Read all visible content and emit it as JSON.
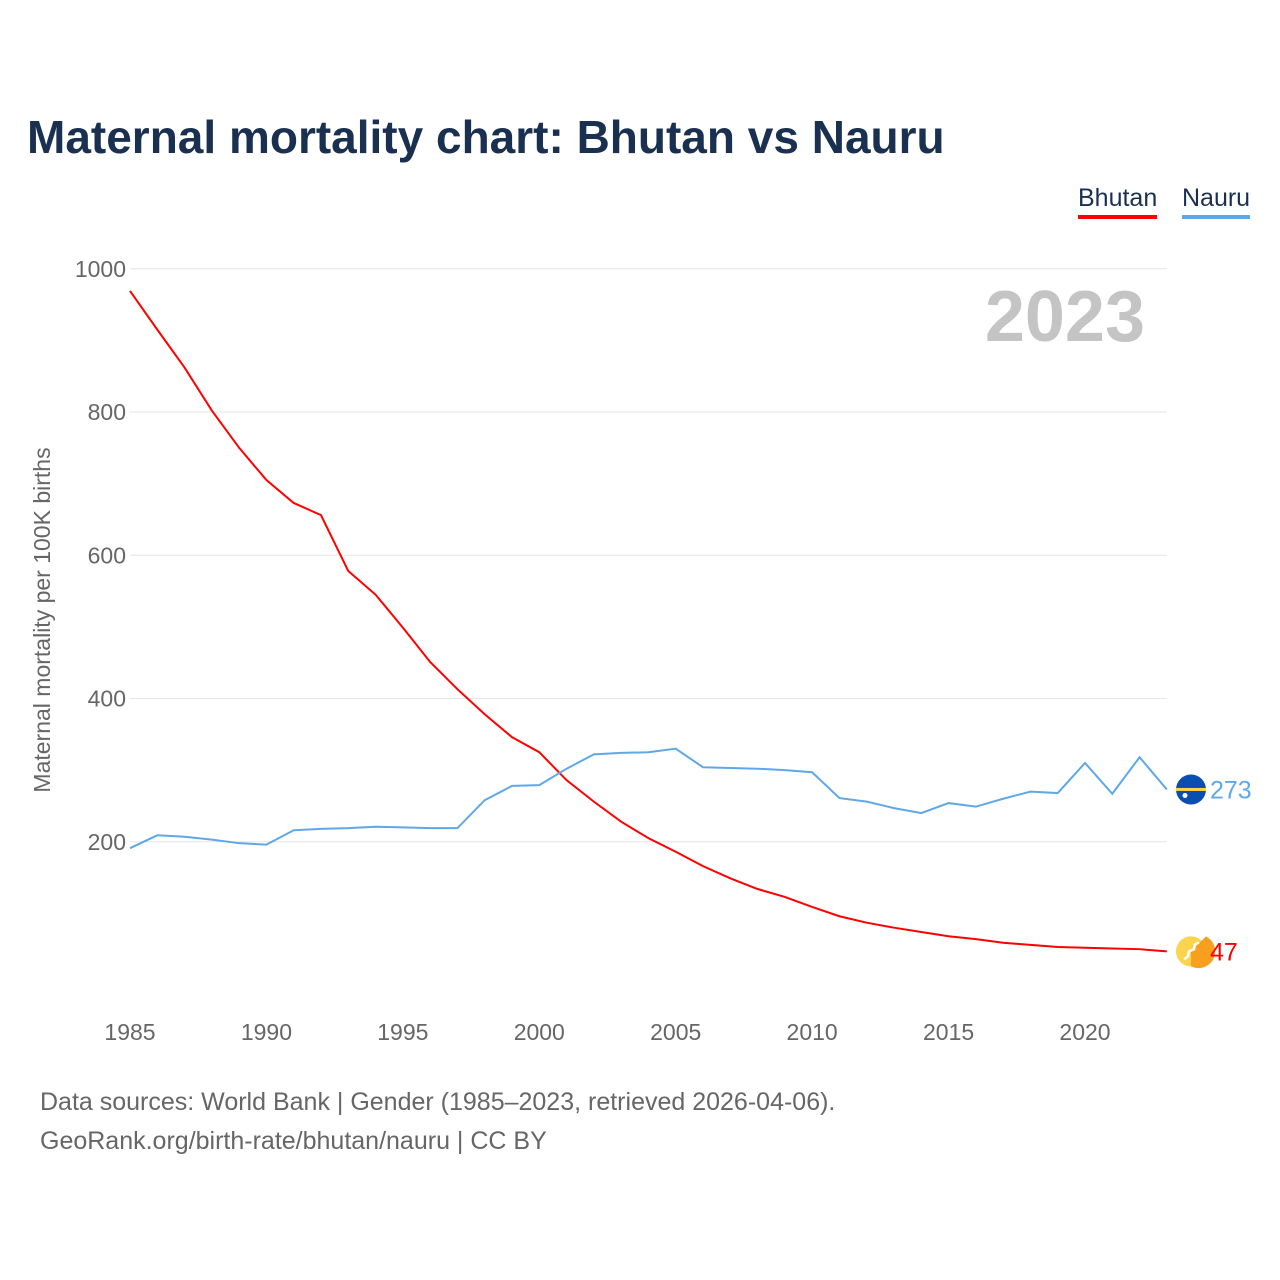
{
  "chart_data": {
    "type": "line",
    "title": "Maternal mortality chart: Bhutan vs Nauru",
    "ylabel": "Maternal mortality per 100K births",
    "xlabel": "",
    "ylim": [
      0,
      1000
    ],
    "xlim": [
      1985,
      2023
    ],
    "yticks": [
      200,
      400,
      600,
      800,
      1000
    ],
    "xticks": [
      1985,
      1990,
      1995,
      2000,
      2005,
      2010,
      2015,
      2020
    ],
    "year_label": "2023",
    "grid": true,
    "legend_position": "top-right",
    "x": [
      1985,
      1986,
      1987,
      1988,
      1989,
      1990,
      1991,
      1992,
      1993,
      1994,
      1995,
      1996,
      1997,
      1998,
      1999,
      2000,
      2001,
      2002,
      2003,
      2004,
      2005,
      2006,
      2007,
      2008,
      2009,
      2010,
      2011,
      2012,
      2013,
      2014,
      2015,
      2016,
      2017,
      2018,
      2019,
      2020,
      2021,
      2022,
      2023
    ],
    "series": [
      {
        "name": "Bhutan",
        "color": "#ff0000",
        "end_label": "47",
        "values": [
          969,
          915,
          862,
          802,
          750,
          705,
          673,
          656,
          578,
          545,
          499,
          451,
          413,
          378,
          346,
          325,
          286,
          256,
          228,
          205,
          186,
          166,
          149,
          134,
          123,
          109,
          96,
          87,
          80,
          74,
          68,
          64,
          59,
          56,
          53,
          52,
          51,
          50,
          47
        ]
      },
      {
        "name": "Nauru",
        "color": "#5fa8e8",
        "end_label": "273",
        "values": [
          191,
          209,
          207,
          203,
          198,
          196,
          216,
          218,
          219,
          221,
          220,
          219,
          219,
          258,
          278,
          279,
          302,
          322,
          324,
          325,
          330,
          304,
          303,
          302,
          300,
          297,
          261,
          256,
          247,
          240,
          254,
          249,
          260,
          270,
          268,
          310,
          267,
          318,
          273
        ]
      }
    ]
  },
  "source_line1": "Data sources: World Bank | Gender (1985–2023, retrieved 2026-04-06).",
  "source_line2": "GeoRank.org/birth-rate/bhutan/nauru | CC BY"
}
